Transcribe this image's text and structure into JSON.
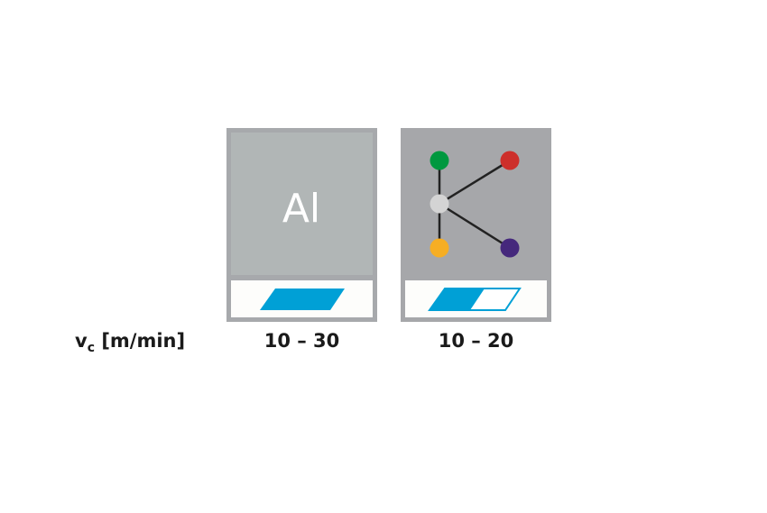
{
  "row_label": {
    "symbol": "v",
    "subscript": "c",
    "unit": "[m/min]"
  },
  "cards": [
    {
      "icon": "aluminium-icon",
      "text": "Al",
      "range": "10 – 30",
      "rating_fill": 1.0,
      "background": "#b1b6b6"
    },
    {
      "icon": "molecule-structure-icon",
      "range": "10 – 20",
      "rating_fill": 0.5,
      "background": "#a6a7aa",
      "node_colors": [
        "#00983f",
        "#cd2f2b",
        "#d4d4d4",
        "#f6ae24",
        "#45287c"
      ]
    }
  ],
  "colors": {
    "frame": "#a7a9ac",
    "accent": "#00a0d6",
    "edge": "#222222"
  }
}
